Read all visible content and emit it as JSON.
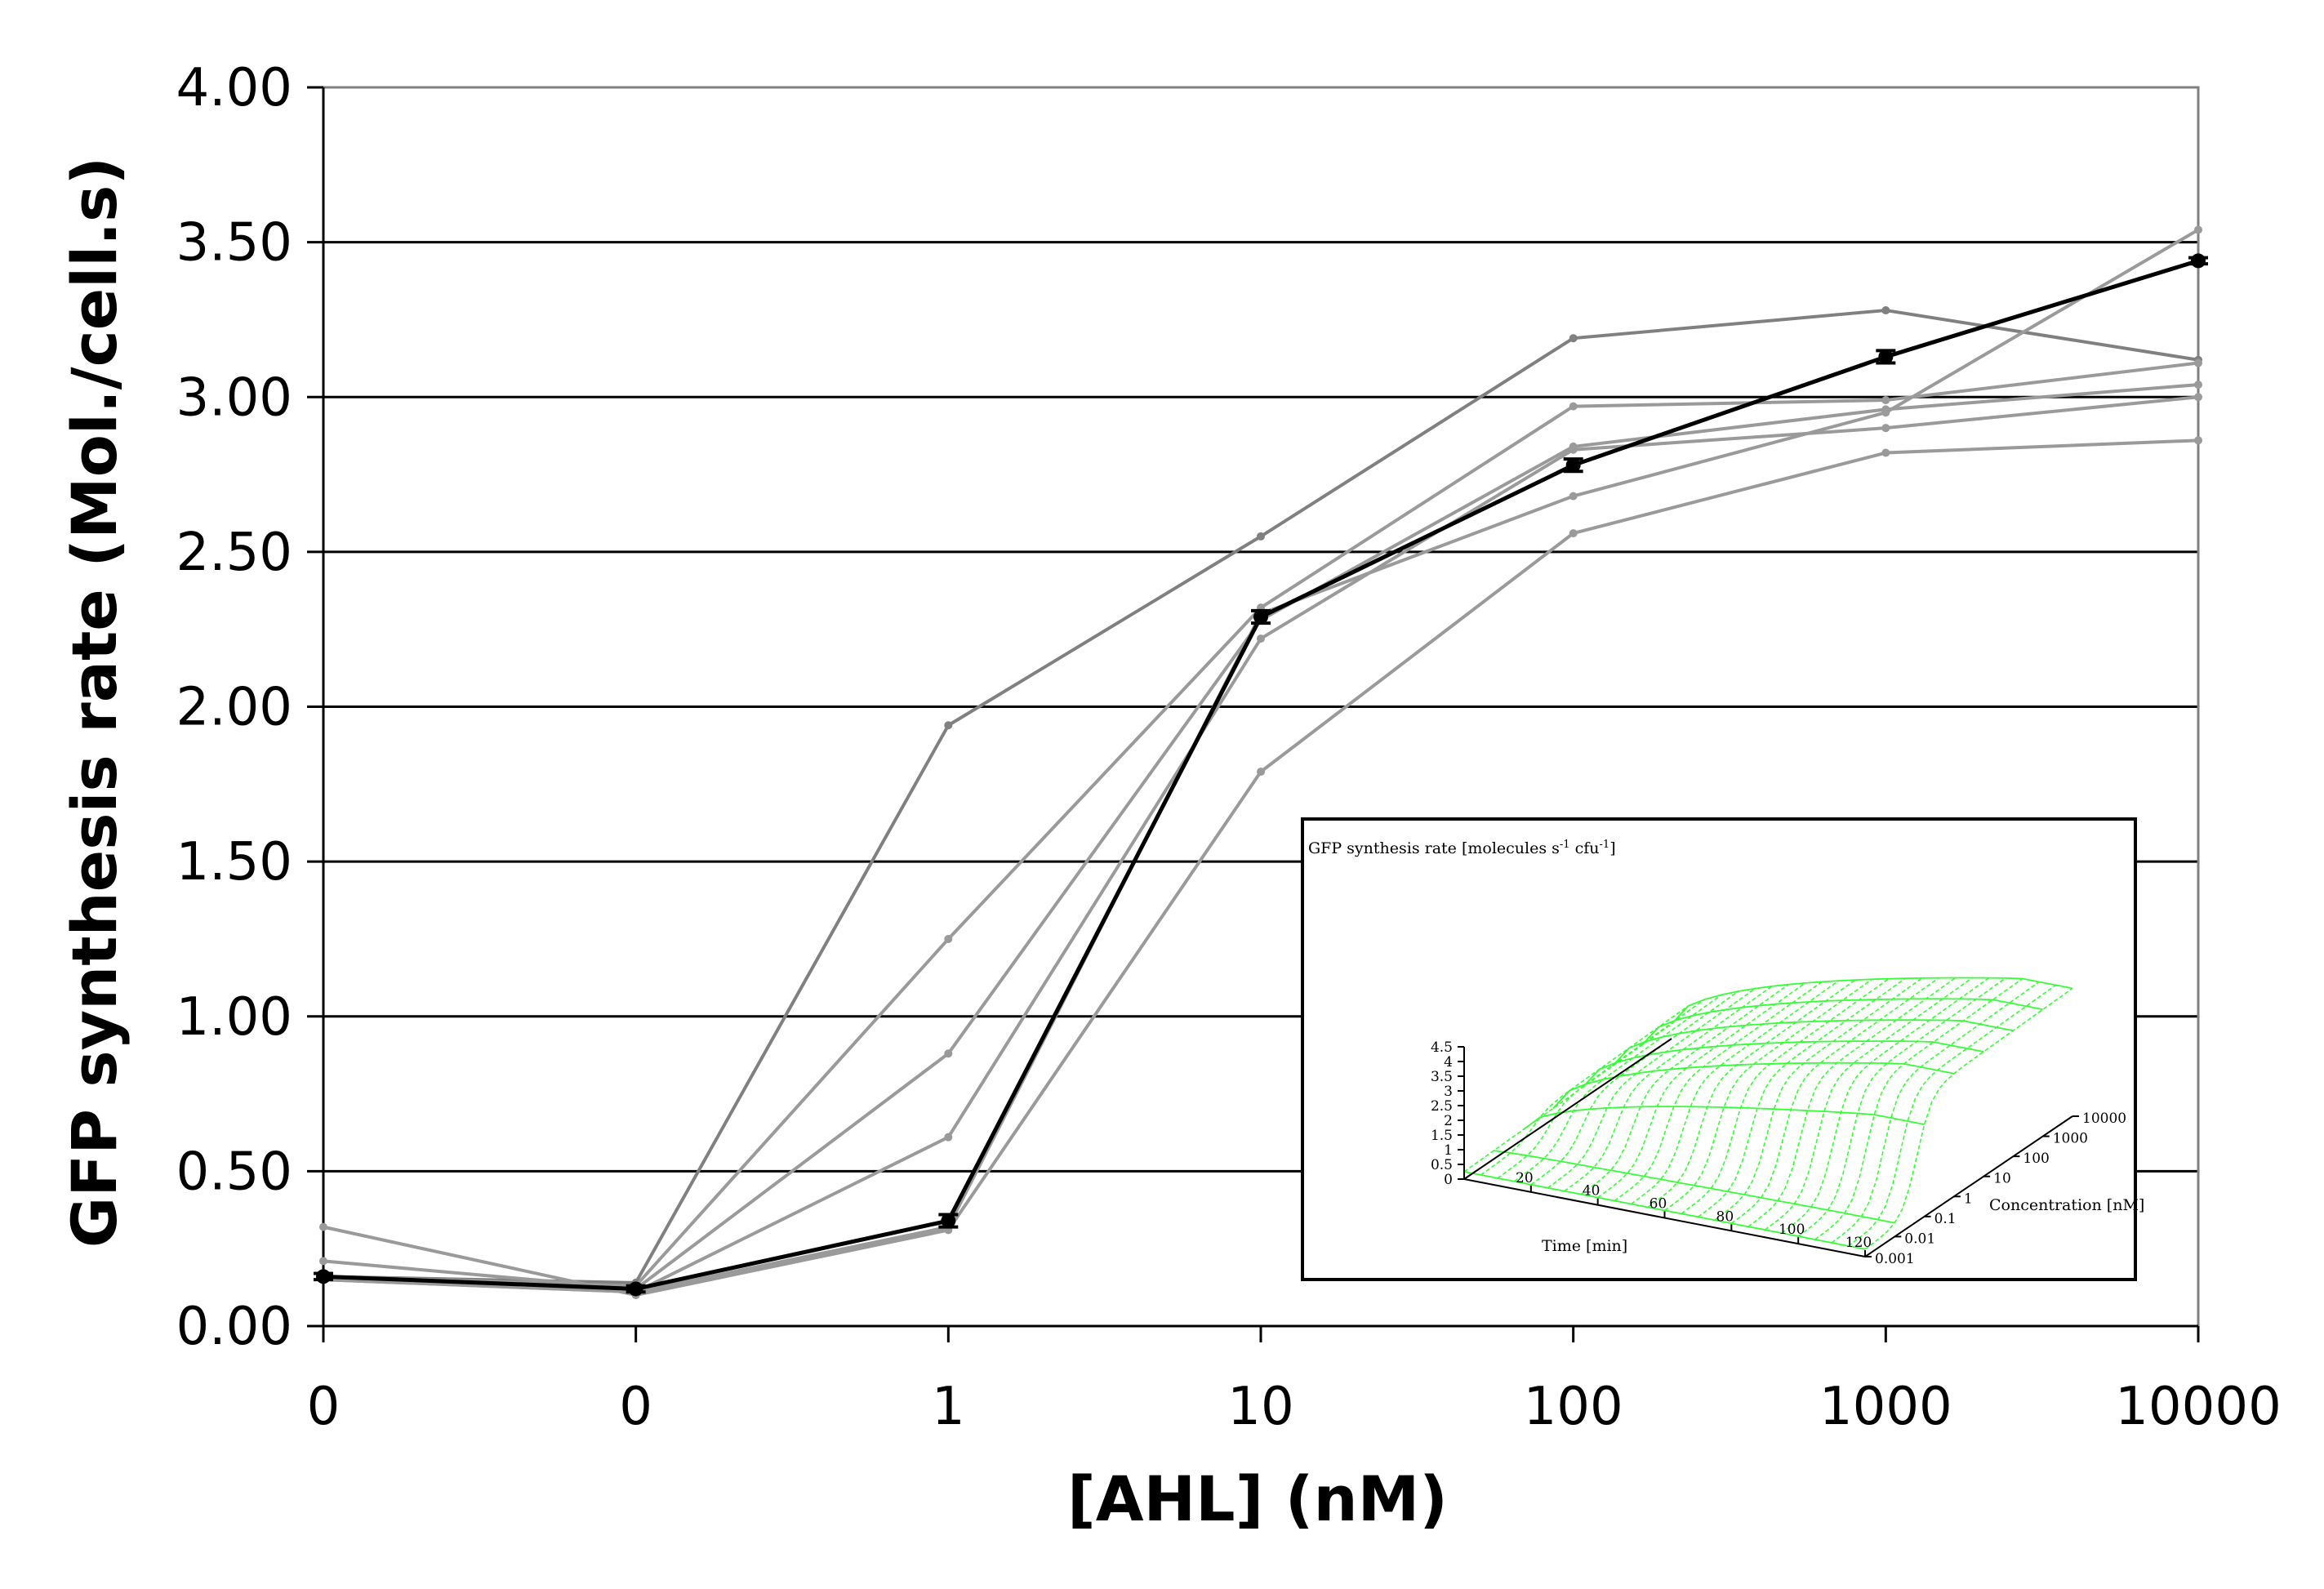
{
  "chart_data": [
    {
      "type": "line",
      "title": "",
      "xlabel": "[AHL] (nM)",
      "ylabel": "GFP synthesis rate (Mol./cell.s)",
      "ylim": [
        0,
        4
      ],
      "yticks": [
        "0.00",
        "0.50",
        "1.00",
        "1.50",
        "2.00",
        "2.50",
        "3.00",
        "3.50",
        "4.00"
      ],
      "categories": [
        "0",
        "0",
        "1",
        "10",
        "100",
        "1000",
        "10000"
      ],
      "grid": "horizontal",
      "legend": "none",
      "series": [
        {
          "color": "#000000",
          "values": [
            0.16,
            0.12,
            0.34,
            2.29,
            2.78,
            3.13,
            3.44
          ],
          "errors": [
            0.01,
            0.01,
            0.02,
            0.02,
            0.02,
            0.02,
            0.01
          ]
        },
        {
          "color": "#808080",
          "values": [
            0.16,
            0.14,
            1.94,
            2.55,
            3.19,
            3.28,
            3.12
          ]
        },
        {
          "color": "#9a9a9a",
          "values": [
            0.16,
            0.13,
            1.25,
            2.32,
            2.97,
            2.99,
            3.11
          ]
        },
        {
          "color": "#9a9a9a",
          "values": [
            0.21,
            0.12,
            0.88,
            2.28,
            2.84,
            2.96,
            3.04
          ]
        },
        {
          "color": "#9a9a9a",
          "values": [
            0.15,
            0.11,
            0.61,
            2.22,
            2.83,
            2.9,
            3.0
          ]
        },
        {
          "color": "#9a9a9a",
          "values": [
            0.32,
            0.1,
            0.31,
            1.79,
            2.56,
            2.82,
            2.86
          ]
        },
        {
          "color": "#9a9a9a",
          "values": [
            0.15,
            0.11,
            0.32,
            2.3,
            2.68,
            2.95,
            3.54
          ]
        }
      ]
    },
    {
      "type": "surface",
      "title": "GFP synthesis rate [molecules s-1 cfu-1]",
      "title_parts": [
        "GFP synthesis rate [molecules s",
        "-1",
        " cfu",
        "-1",
        "]"
      ],
      "xlabel": "Time [min]",
      "ylabel": "Concentration [nM]",
      "zticks": [
        "0",
        "0.5",
        "1",
        "1.5",
        "2",
        "2.5",
        "3",
        "3.5",
        "4",
        "4.5"
      ],
      "xticks": [
        "20",
        "40",
        "60",
        "80",
        "100",
        "120"
      ],
      "yticks": [
        "0.001",
        "0.01",
        "0.1",
        "1",
        "10",
        "100",
        "1000",
        "10000"
      ],
      "color": "#33ff33"
    }
  ]
}
